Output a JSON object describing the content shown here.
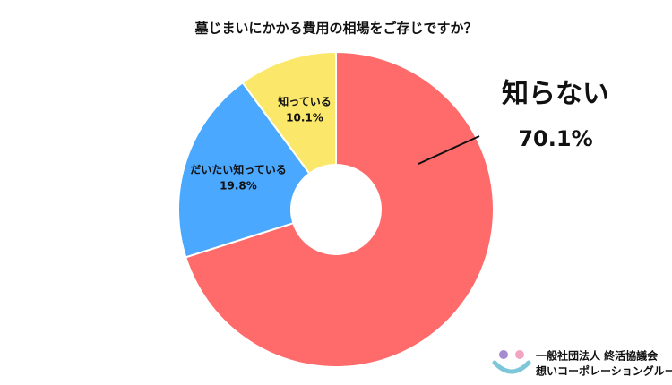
{
  "chart_data": {
    "type": "donut",
    "title": "墓じまいにかかる費用の相場をご存じですか？",
    "categories": [
      "知らない",
      "だいたい知っている",
      "知っている"
    ],
    "values": [
      70.1,
      19.8,
      10.1
    ],
    "value_labels": [
      "70.1%",
      "19.8%",
      "10.1%"
    ],
    "colors": [
      "#ff6b6b",
      "#4aa8ff",
      "#fbe86a"
    ]
  },
  "logo": {
    "line1": "一般社団法人 終活協議会",
    "line2": "想いコーポレーショングループ"
  }
}
